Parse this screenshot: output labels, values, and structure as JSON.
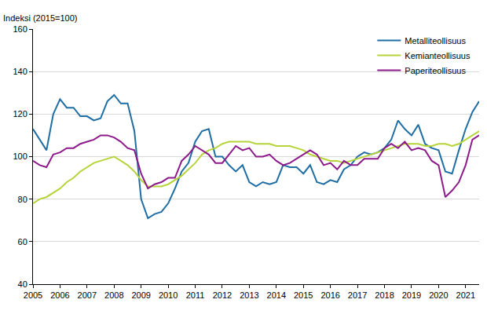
{
  "chart_data": {
    "type": "line",
    "ylabel": "Indeksi (2015=100)",
    "x": [
      2005,
      2005.25,
      2005.5,
      2005.75,
      2006,
      2006.25,
      2006.5,
      2006.75,
      2007,
      2007.25,
      2007.5,
      2007.75,
      2008,
      2008.25,
      2008.5,
      2008.75,
      2009,
      2009.25,
      2009.5,
      2009.75,
      2010,
      2010.25,
      2010.5,
      2010.75,
      2011,
      2011.25,
      2011.5,
      2011.75,
      2012,
      2012.25,
      2012.5,
      2012.75,
      2013,
      2013.25,
      2013.5,
      2013.75,
      2014,
      2014.25,
      2014.5,
      2014.75,
      2015,
      2015.25,
      2015.5,
      2015.75,
      2016,
      2016.25,
      2016.5,
      2016.75,
      2017,
      2017.25,
      2017.5,
      2017.75,
      2018,
      2018.25,
      2018.5,
      2018.75,
      2019,
      2019.25,
      2019.5,
      2019.75,
      2020,
      2020.25,
      2020.5,
      2020.75,
      2021,
      2021.25,
      2021.5
    ],
    "series": [
      {
        "name": "Metalliteollisuus",
        "color": "#1f6ea3",
        "values": [
          113,
          108,
          103,
          120,
          127,
          123,
          123,
          119,
          119,
          117,
          118,
          126,
          129,
          125,
          125,
          112,
          80,
          71,
          73,
          74,
          78,
          85,
          93,
          97,
          107,
          112,
          113,
          100,
          100,
          96,
          93,
          96,
          88,
          86,
          88,
          87,
          88,
          96,
          95,
          95,
          92,
          96,
          88,
          87,
          89,
          88,
          94,
          96,
          100,
          102,
          101,
          102,
          104,
          108,
          117,
          113,
          110,
          115,
          106,
          104,
          103,
          93,
          92,
          103,
          113,
          121,
          126
        ]
      },
      {
        "name": "Kemianteollisuus",
        "color": "#b6d43a",
        "values": [
          78,
          80,
          81,
          83,
          85,
          88,
          90,
          93,
          95,
          97,
          98,
          99,
          100,
          98,
          96,
          93,
          89,
          86,
          86,
          86,
          87,
          89,
          91,
          94,
          97,
          101,
          103,
          104,
          106,
          107,
          107,
          107,
          107,
          106,
          106,
          106,
          105,
          105,
          105,
          104,
          103,
          101,
          100,
          99,
          98,
          98,
          97,
          98,
          99,
          100,
          101,
          102,
          103,
          104,
          105,
          106,
          106,
          106,
          105,
          105,
          106,
          106,
          105,
          106,
          108,
          110,
          112
        ]
      },
      {
        "name": "Paperiteollisuus",
        "color": "#8c1a8a",
        "values": [
          98,
          96,
          95,
          101,
          102,
          104,
          104,
          106,
          107,
          108,
          110,
          110,
          109,
          107,
          104,
          103,
          92,
          85,
          87,
          88,
          90,
          90,
          98,
          101,
          105,
          103,
          101,
          97,
          97,
          101,
          105,
          103,
          104,
          100,
          100,
          101,
          98,
          96,
          97,
          99,
          101,
          103,
          101,
          96,
          97,
          94,
          98,
          96,
          96,
          99,
          99,
          99,
          104,
          106,
          104,
          107,
          103,
          104,
          103,
          98,
          96,
          81,
          84,
          88,
          96,
          108,
          110
        ]
      }
    ],
    "xlim": [
      2005,
      2021.5
    ],
    "xticks": [
      2005,
      2006,
      2007,
      2008,
      2009,
      2010,
      2011,
      2012,
      2013,
      2014,
      2015,
      2016,
      2017,
      2018,
      2019,
      2020,
      2021
    ],
    "ylim": [
      40,
      160
    ],
    "yticks": [
      40,
      60,
      80,
      100,
      120,
      140,
      160
    ],
    "grid": true,
    "legend": "upper right"
  }
}
